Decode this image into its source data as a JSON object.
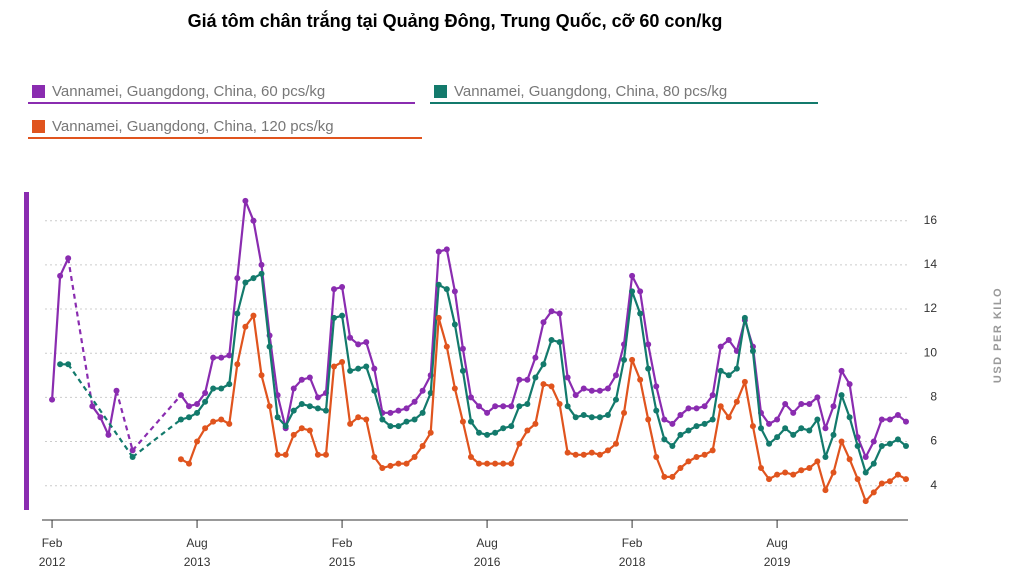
{
  "chart_data": {
    "type": "line",
    "title": "Giá tôm chân trắng tại Quảng Đông, Trung Quốc, cỡ  60 con/kg",
    "y_axis_label": "USD PER KILO",
    "x": [
      "2012-02",
      "2012-03",
      "2012-04",
      "2012-05",
      "2012-06",
      "2012-07",
      "2012-08",
      "2012-09",
      "2012-10",
      "2012-11",
      "2012-12",
      "2013-01",
      "2013-02",
      "2013-03",
      "2013-04",
      "2013-05",
      "2013-06",
      "2013-07",
      "2013-08",
      "2013-09",
      "2013-10",
      "2013-11",
      "2013-12",
      "2014-01",
      "2014-02",
      "2014-03",
      "2014-04",
      "2014-05",
      "2014-06",
      "2014-07",
      "2014-08",
      "2014-09",
      "2014-10",
      "2014-11",
      "2014-12",
      "2015-01",
      "2015-02",
      "2015-03",
      "2015-04",
      "2015-05",
      "2015-06",
      "2015-07",
      "2015-08",
      "2015-09",
      "2015-10",
      "2015-11",
      "2015-12",
      "2016-01",
      "2016-02",
      "2016-03",
      "2016-04",
      "2016-05",
      "2016-06",
      "2016-07",
      "2016-08",
      "2016-09",
      "2016-10",
      "2016-11",
      "2016-12",
      "2017-01",
      "2017-02",
      "2017-03",
      "2017-04",
      "2017-05",
      "2017-06",
      "2017-07",
      "2017-08",
      "2017-09",
      "2017-10",
      "2017-11",
      "2017-12",
      "2018-01",
      "2018-02",
      "2018-03",
      "2018-04",
      "2018-05",
      "2018-06",
      "2018-07",
      "2018-08",
      "2018-09",
      "2018-10",
      "2018-11",
      "2018-12",
      "2019-01",
      "2019-02",
      "2019-03",
      "2019-04",
      "2019-05",
      "2019-06",
      "2019-07",
      "2019-08",
      "2019-09",
      "2019-10",
      "2019-11",
      "2019-12",
      "2020-01",
      "2020-02",
      "2020-03",
      "2020-04",
      "2020-05",
      "2020-06",
      "2020-07",
      "2020-08",
      "2020-09",
      "2020-10",
      "2020-11",
      "2020-12"
    ],
    "series": [
      {
        "name": "Vannamei, Guangdong, China, 60 pcs/kg",
        "color": "#8a2cb0",
        "values": [
          7.9,
          13.5,
          14.3,
          null,
          null,
          7.6,
          7.1,
          6.3,
          8.3,
          null,
          5.6,
          null,
          null,
          null,
          null,
          null,
          8.1,
          7.6,
          7.7,
          8.2,
          9.8,
          9.8,
          9.9,
          13.4,
          16.9,
          16.0,
          14.0,
          10.8,
          8.1,
          6.6,
          8.4,
          8.8,
          8.9,
          8.0,
          8.2,
          12.9,
          13.0,
          10.7,
          10.4,
          10.5,
          9.3,
          7.3,
          7.3,
          7.4,
          7.5,
          7.8,
          8.3,
          9.0,
          14.6,
          14.7,
          12.8,
          10.2,
          8.0,
          7.6,
          7.3,
          7.6,
          7.6,
          7.6,
          8.8,
          8.8,
          9.8,
          11.4,
          11.9,
          11.8,
          8.9,
          8.1,
          8.4,
          8.3,
          8.3,
          8.4,
          9.0,
          10.4,
          13.5,
          12.8,
          10.4,
          8.5,
          7.0,
          6.8,
          7.2,
          7.5,
          7.5,
          7.6,
          8.1,
          10.3,
          10.6,
          10.1,
          11.5,
          10.3,
          7.3,
          6.8,
          7.0,
          7.7,
          7.3,
          7.7,
          7.7,
          8.0,
          6.6,
          7.6,
          9.2,
          8.6,
          6.2,
          5.3,
          6.0,
          7.0,
          7.0,
          7.2,
          6.9
        ]
      },
      {
        "name": "Vannamei, Guangdong, China, 80 pcs/kg",
        "color": "#137a6c",
        "values": [
          null,
          9.5,
          9.5,
          null,
          null,
          null,
          null,
          null,
          null,
          null,
          5.3,
          null,
          null,
          null,
          null,
          null,
          7.0,
          7.1,
          7.3,
          7.8,
          8.4,
          8.4,
          8.6,
          11.8,
          13.2,
          13.4,
          13.6,
          10.3,
          7.1,
          6.7,
          7.4,
          7.7,
          7.6,
          7.5,
          7.4,
          11.6,
          11.7,
          9.2,
          9.3,
          9.4,
          8.3,
          7.0,
          6.7,
          6.7,
          6.9,
          7.0,
          7.3,
          8.2,
          13.1,
          12.9,
          11.3,
          9.2,
          6.9,
          6.4,
          6.3,
          6.4,
          6.6,
          6.7,
          7.6,
          7.7,
          8.9,
          9.5,
          10.6,
          10.5,
          7.6,
          7.1,
          7.2,
          7.1,
          7.1,
          7.2,
          7.9,
          9.7,
          12.8,
          11.8,
          9.3,
          7.4,
          6.1,
          5.8,
          6.3,
          6.5,
          6.7,
          6.8,
          7.0,
          9.2,
          9.0,
          9.3,
          11.6,
          10.1,
          6.6,
          5.9,
          6.2,
          6.6,
          6.3,
          6.6,
          6.5,
          7.0,
          5.3,
          6.3,
          8.1,
          7.1,
          5.8,
          4.6,
          5.0,
          5.8,
          5.9,
          6.1,
          5.8
        ]
      },
      {
        "name": "Vannamei, Guangdong, China, 120 pcs/kg",
        "color": "#e0541e",
        "values": [
          null,
          null,
          null,
          null,
          null,
          null,
          null,
          null,
          null,
          null,
          null,
          null,
          null,
          null,
          null,
          null,
          5.2,
          5.0,
          6.0,
          6.6,
          6.9,
          7.0,
          6.8,
          9.5,
          11.2,
          11.7,
          9.0,
          7.6,
          5.4,
          5.4,
          6.3,
          6.6,
          6.5,
          5.4,
          5.4,
          9.4,
          9.6,
          6.8,
          7.1,
          7.0,
          5.3,
          4.8,
          4.9,
          5.0,
          5.0,
          5.3,
          5.8,
          6.4,
          11.6,
          10.3,
          8.4,
          6.9,
          5.3,
          5.0,
          5.0,
          5.0,
          5.0,
          5.0,
          5.9,
          6.5,
          6.8,
          8.6,
          8.5,
          7.7,
          5.5,
          5.4,
          5.4,
          5.5,
          5.4,
          5.6,
          5.9,
          7.3,
          9.7,
          8.8,
          7.0,
          5.3,
          4.4,
          4.4,
          4.8,
          5.1,
          5.3,
          5.4,
          5.6,
          7.6,
          7.1,
          7.8,
          8.7,
          6.7,
          4.8,
          4.3,
          4.5,
          4.6,
          4.5,
          4.7,
          4.8,
          5.1,
          3.8,
          4.6,
          6.0,
          5.2,
          4.3,
          3.3,
          3.7,
          4.1,
          4.2,
          4.5,
          4.3
        ]
      }
    ],
    "xlim": [
      "2012-01",
      "2020-12"
    ],
    "xticks": [
      {
        "value": "2012-02",
        "label": [
          "Feb",
          "2012"
        ]
      },
      {
        "value": "2013-08",
        "label": [
          "Aug",
          "2013"
        ]
      },
      {
        "value": "2015-02",
        "label": [
          "Feb",
          "2015"
        ]
      },
      {
        "value": "2016-08",
        "label": [
          "Aug",
          "2016"
        ]
      },
      {
        "value": "2018-02",
        "label": [
          "Feb",
          "2018"
        ]
      },
      {
        "value": "2019-08",
        "label": [
          "Aug",
          "2019"
        ]
      }
    ],
    "ylim": [
      2.9,
      17.3
    ],
    "yticks": [
      4,
      6,
      8,
      10,
      12,
      14,
      16
    ],
    "grid": true
  }
}
